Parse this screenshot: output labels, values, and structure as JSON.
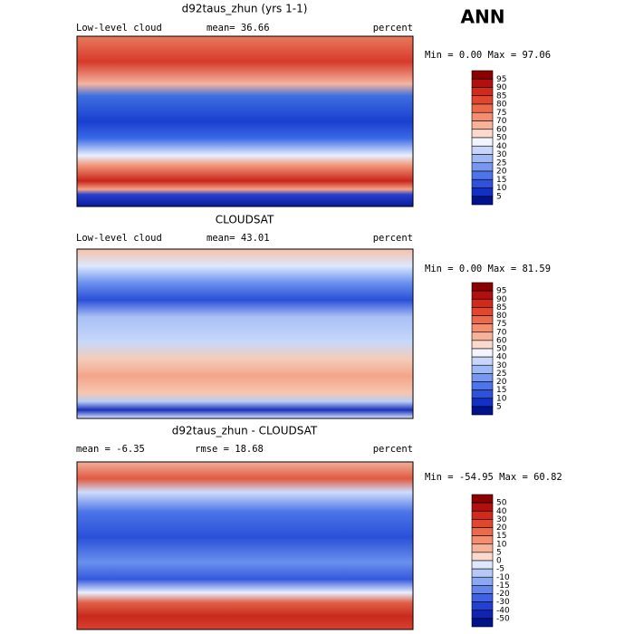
{
  "title": "ANN",
  "panels": [
    {
      "title": "d92taus_zhun (yrs 1-1)",
      "left": "Low-level cloud",
      "center": "mean=  36.66",
      "right": "percent",
      "stats": "Min =   0.00 Max =  97.06",
      "colorbar": {
        "labels": [
          "95",
          "90",
          "85",
          "80",
          "75",
          "70",
          "60",
          "50",
          "40",
          "30",
          "25",
          "20",
          "15",
          "10",
          "5"
        ],
        "colors": [
          "#8b0000",
          "#b01010",
          "#d02a1a",
          "#e0482e",
          "#ec6a4c",
          "#f38e70",
          "#f7b39a",
          "#fbd9cc",
          "#f2f4ff",
          "#c8d6fb",
          "#9fb8f6",
          "#7897f0",
          "#4f73e8",
          "#2e52dc",
          "#1330c4",
          "#00128c"
        ]
      }
    },
    {
      "title": "CLOUDSAT",
      "left": "Low-level cloud",
      "center": "mean=  43.01",
      "right": "percent",
      "stats": "Min =   0.00 Max =  81.59",
      "colorbar": {
        "labels": [
          "95",
          "90",
          "85",
          "80",
          "75",
          "70",
          "60",
          "50",
          "40",
          "30",
          "25",
          "20",
          "15",
          "10",
          "5"
        ],
        "colors": [
          "#8b0000",
          "#b01010",
          "#d02a1a",
          "#e0482e",
          "#ec6a4c",
          "#f38e70",
          "#f7b39a",
          "#fbd9cc",
          "#f2f4ff",
          "#c8d6fb",
          "#9fb8f6",
          "#7897f0",
          "#4f73e8",
          "#2e52dc",
          "#1330c4",
          "#00128c"
        ]
      }
    },
    {
      "title": "d92taus_zhun - CLOUDSAT",
      "left": "mean =  -6.35",
      "center": "rmse =  18.68",
      "right": "percent",
      "stats": "Min = -54.95 Max =  60.82",
      "colorbar": {
        "labels": [
          "50",
          "40",
          "30",
          "20",
          "15",
          "10",
          "5",
          "0",
          "-5",
          "-10",
          "-15",
          "-20",
          "-30",
          "-40",
          "-50"
        ],
        "colors": [
          "#8b0000",
          "#b01010",
          "#d02a1a",
          "#e0482e",
          "#ec6a4c",
          "#f38e70",
          "#f7b39a",
          "#fbd9cc",
          "#dfe7fd",
          "#b5c8f8",
          "#8ca8f3",
          "#6585ec",
          "#3e62e2",
          "#2240d4",
          "#1024b0",
          "#00128c"
        ]
      }
    }
  ]
}
